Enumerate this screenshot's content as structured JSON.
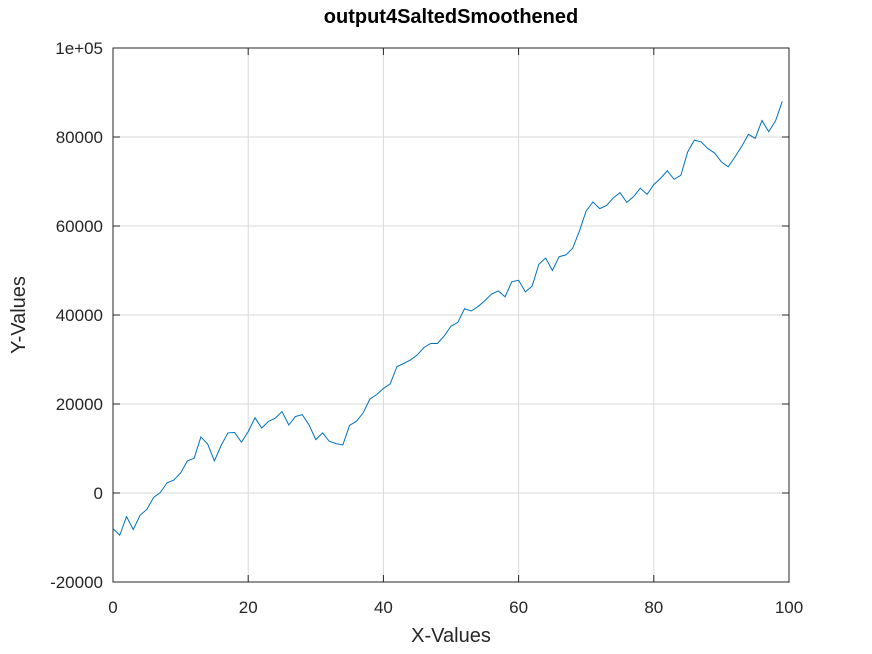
{
  "chart_data": {
    "type": "line",
    "title": "output4SaltedSmoothened",
    "xlabel": "X-Values",
    "ylabel": "Y-Values",
    "xlim": [
      0,
      100
    ],
    "ylim": [
      -20000,
      100000
    ],
    "x_ticks": [
      0,
      20,
      40,
      60,
      80,
      100
    ],
    "x_tick_labels": [
      "0",
      "20",
      "40",
      "60",
      "80",
      "100"
    ],
    "y_ticks": [
      -20000,
      0,
      20000,
      40000,
      60000,
      80000,
      100000
    ],
    "y_tick_labels": [
      "-20000",
      "0",
      "20000",
      "40000",
      "60000",
      "80000",
      "1e+05"
    ],
    "grid": true,
    "line_color": "#0072bd",
    "series": [
      {
        "x": [
          0,
          1,
          2,
          3,
          4,
          5,
          6,
          7,
          8,
          9,
          10,
          11,
          12,
          13,
          14,
          15,
          16,
          17,
          18,
          19,
          20,
          21,
          22,
          23,
          24,
          25,
          26,
          27,
          28,
          29,
          30,
          31,
          32,
          33,
          34,
          35,
          36,
          37,
          38,
          39,
          40,
          41,
          42,
          43,
          44,
          45,
          46,
          47,
          48,
          49,
          50,
          51,
          52,
          53,
          54,
          55,
          56,
          57,
          58,
          59,
          60,
          61,
          62,
          63,
          64,
          65,
          66,
          67,
          68,
          69,
          70,
          71,
          72,
          73,
          74,
          75,
          76,
          77,
          78,
          79,
          80,
          81,
          82,
          83,
          84,
          85,
          86,
          87,
          88,
          89,
          90,
          91,
          92,
          93,
          94,
          95,
          96,
          97,
          98,
          99
        ],
        "values": [
          -8000,
          -9500,
          -5300,
          -8200,
          -5000,
          -3700,
          -1000,
          100,
          2300,
          2900,
          4500,
          7200,
          7800,
          12600,
          11000,
          7200,
          10700,
          13500,
          13600,
          11400,
          13800,
          16900,
          14600,
          16100,
          16800,
          18300,
          15300,
          17200,
          17600,
          15300,
          12000,
          13500,
          11600,
          11100,
          10800,
          15200,
          16100,
          18000,
          21100,
          22100,
          23500,
          24500,
          28400,
          29100,
          29900,
          31000,
          32700,
          33600,
          33600,
          35300,
          37500,
          38300,
          41400,
          40900,
          41900,
          43200,
          44700,
          45400,
          44100,
          47500,
          47800,
          45200,
          46500,
          51400,
          52800,
          50000,
          53100,
          53500,
          55000,
          58900,
          63400,
          65400,
          63900,
          64600,
          66300,
          67500,
          65300,
          66600,
          68500,
          67100,
          69300,
          70700,
          72400,
          70500,
          71400,
          76600,
          79300,
          78900,
          77400,
          76400,
          74400,
          73300,
          75500,
          77900,
          80600,
          79700,
          83700,
          81200,
          83600,
          88000
        ]
      }
    ]
  }
}
